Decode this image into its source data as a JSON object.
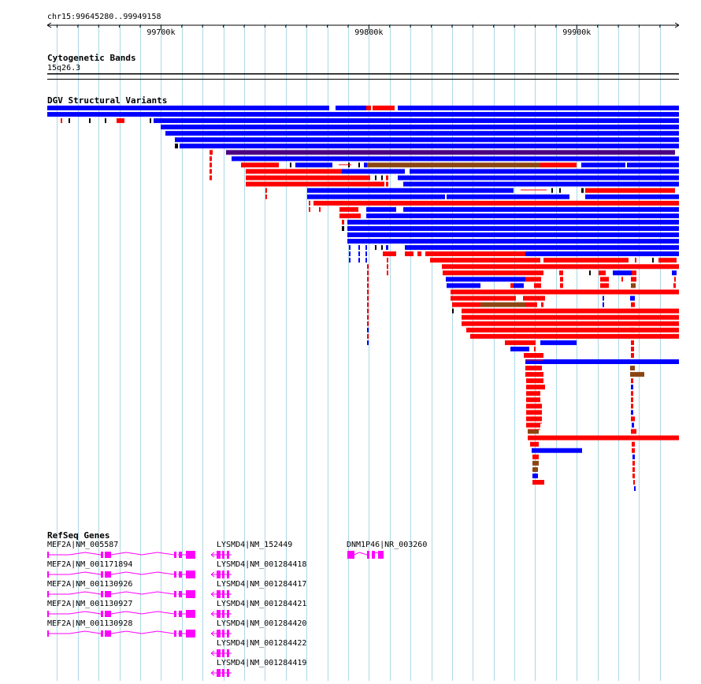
{
  "locus": "chr15:99645280..99949158",
  "ruler": {
    "start": 99645280,
    "end": 99949158,
    "ticks": [
      {
        "pos": 99700000,
        "label": "99700k"
      },
      {
        "pos": 99800000,
        "label": "99800k"
      },
      {
        "pos": 99900000,
        "label": "99900k"
      }
    ]
  },
  "tracks": {
    "cytoband": {
      "title": "Cytogenetic Bands",
      "band": "15q26.3"
    },
    "dgv": {
      "title": "DGV Structural Variants"
    },
    "refseq": {
      "title": "RefSeq Genes"
    }
  },
  "colors": {
    "loss": "#ff0000",
    "gain": "#0000ff",
    "gain_loss": "#8b4513",
    "inversion": "#000000",
    "gene": "#ff00ff",
    "grid": "#add8e6"
  },
  "genes": [
    {
      "label": "MEF2A|NM_005587",
      "strand": "+"
    },
    {
      "label": "MEF2A|NM_001171894",
      "strand": "+"
    },
    {
      "label": "MEF2A|NM_001130926",
      "strand": "+"
    },
    {
      "label": "MEF2A|NM_001130927",
      "strand": "+"
    },
    {
      "label": "MEF2A|NM_001130928",
      "strand": "+"
    },
    {
      "label": "LYSMD4|NM_152449",
      "strand": "-"
    },
    {
      "label": "LYSMD4|NM_001284418",
      "strand": "-"
    },
    {
      "label": "LYSMD4|NM_001284417",
      "strand": "-"
    },
    {
      "label": "LYSMD4|NM_001284421",
      "strand": "-"
    },
    {
      "label": "LYSMD4|NM_001284420",
      "strand": "-"
    },
    {
      "label": "LYSMD4|NM_001284422",
      "strand": "-"
    },
    {
      "label": "LYSMD4|NM_001284419",
      "strand": "-"
    },
    {
      "label": "DNM1P46|NR_003260",
      "strand": "-"
    }
  ]
}
